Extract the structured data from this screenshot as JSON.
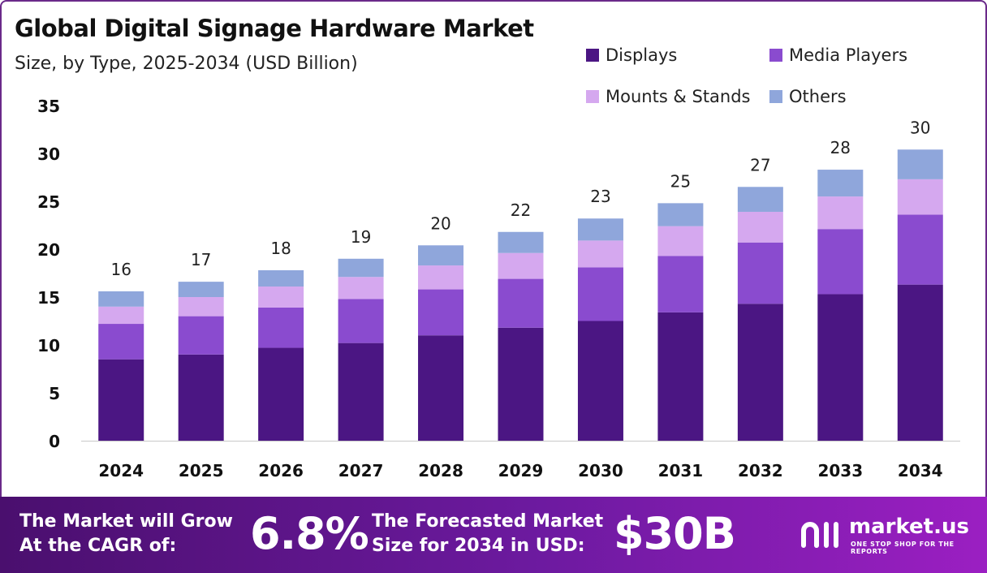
{
  "chart_data": {
    "type": "bar",
    "stacked": true,
    "title": "Global Digital Signage Hardware Market",
    "subtitle": "Size, by Type, 2025-2034 (USD Billion)",
    "categories": [
      "2024",
      "2025",
      "2026",
      "2027",
      "2028",
      "2029",
      "2030",
      "2031",
      "2032",
      "2033",
      "2034"
    ],
    "series": [
      {
        "name": "Displays",
        "color": "#4b1683",
        "values": [
          8.5,
          9.0,
          9.7,
          10.2,
          11.0,
          11.8,
          12.5,
          13.4,
          14.3,
          15.3,
          16.3
        ]
      },
      {
        "name": "Media Players",
        "color": "#8a4bcf",
        "values": [
          3.7,
          4.0,
          4.2,
          4.6,
          4.8,
          5.1,
          5.6,
          5.9,
          6.4,
          6.8,
          7.3
        ]
      },
      {
        "name": "Mounts & Stands",
        "color": "#d5a8ef",
        "values": [
          1.8,
          2.0,
          2.2,
          2.3,
          2.5,
          2.7,
          2.8,
          3.1,
          3.2,
          3.4,
          3.7
        ]
      },
      {
        "name": "Others",
        "color": "#8fa6db",
        "values": [
          1.6,
          1.6,
          1.7,
          1.9,
          2.1,
          2.2,
          2.3,
          2.4,
          2.6,
          2.8,
          3.1
        ]
      }
    ],
    "totals": [
      "16",
      "17",
      "18",
      "19",
      "20",
      "22",
      "23",
      "25",
      "27",
      "28",
      "30"
    ],
    "ylim": [
      0,
      35
    ],
    "yticks": [
      0,
      5,
      10,
      15,
      20,
      25,
      30,
      35
    ],
    "xlabel": "",
    "ylabel": "",
    "grid": false,
    "legend_position": "top-right"
  },
  "banner": {
    "cagr_label_line1": "The Market will Grow",
    "cagr_label_line2": "At the CAGR of:",
    "cagr_value": "6.8%",
    "forecast_label_line1": "The Forecasted Market",
    "forecast_label_line2": "Size for 2034 in USD:",
    "forecast_value": "$30B",
    "logo_name": "market.us",
    "logo_tagline": "ONE STOP SHOP FOR THE REPORTS"
  }
}
